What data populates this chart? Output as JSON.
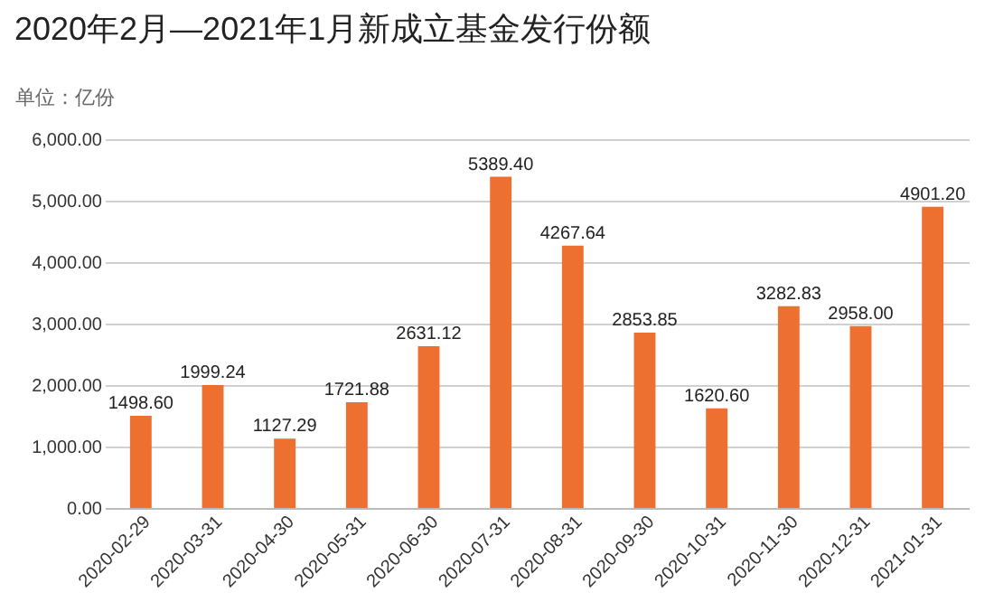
{
  "chart_data": {
    "type": "bar",
    "title": "2020年2月—2021年1月新成立基金发行份额",
    "ylabel": "单位：亿份",
    "categories": [
      "2020-02-29",
      "2020-03-31",
      "2020-04-30",
      "2020-05-31",
      "2020-06-30",
      "2020-07-31",
      "2020-08-31",
      "2020-09-30",
      "2020-10-31",
      "2020-11-30",
      "2020-12-31",
      "2021-01-31"
    ],
    "values": [
      1498.6,
      1999.24,
      1127.29,
      1721.88,
      2631.12,
      5389.4,
      4267.64,
      2853.85,
      1620.6,
      3282.83,
      2958.0,
      4901.2
    ],
    "value_labels": [
      "1498.60",
      "1999.24",
      "1127.29",
      "1721.88",
      "2631.12",
      "5389.40",
      "4267.64",
      "2853.85",
      "1620.60",
      "3282.83",
      "2958.00",
      "4901.20"
    ],
    "color": "#ed7031",
    "ylim": [
      0,
      6000
    ],
    "yticks": [
      {
        "value": 0,
        "label": "0.00"
      },
      {
        "value": 1000,
        "label": "1,000.00"
      },
      {
        "value": 2000,
        "label": "2,000.00"
      },
      {
        "value": 3000,
        "label": "3,000.00"
      },
      {
        "value": 4000,
        "label": "4,000.00"
      },
      {
        "value": 5000,
        "label": "5,000.00"
      },
      {
        "value": 6000,
        "label": "6,000.00"
      }
    ],
    "grid": "y"
  }
}
